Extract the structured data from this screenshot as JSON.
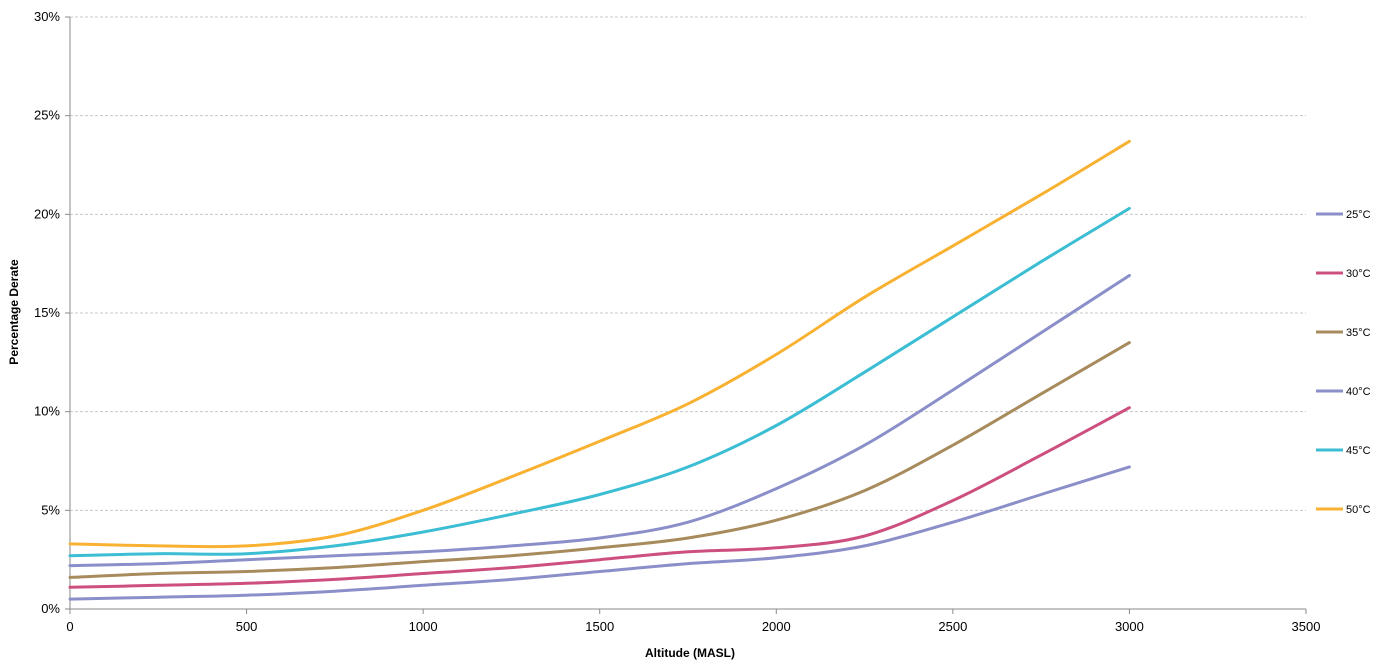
{
  "chart_data": {
    "type": "line",
    "title": "",
    "xlabel": "Altitude (MASL)",
    "ylabel": "Percentage Derate",
    "xlim": [
      0,
      3500
    ],
    "ylim": [
      0,
      30
    ],
    "x_ticks": [
      "0",
      "500",
      "1000",
      "1500",
      "2000",
      "2500",
      "3000",
      "3500"
    ],
    "y_ticks": [
      "0%",
      "5%",
      "10%",
      "15%",
      "20%",
      "25%",
      "30%"
    ],
    "grid": true,
    "legend_position": "right",
    "x": [
      0,
      250,
      500,
      750,
      1000,
      1250,
      1500,
      1750,
      2000,
      2250,
      2500,
      2750,
      3000
    ],
    "series": [
      {
        "name": "25°C",
        "color": "#8a8fc9",
        "values": [
          0.5,
          0.6,
          0.7,
          0.9,
          1.2,
          1.5,
          1.9,
          2.3,
          2.6,
          3.2,
          4.4,
          5.8,
          7.2
        ]
      },
      {
        "name": "30°C",
        "color": "#cc4f7f",
        "values": [
          1.1,
          1.2,
          1.3,
          1.5,
          1.8,
          2.1,
          2.5,
          2.9,
          3.1,
          3.7,
          5.5,
          7.8,
          10.2
        ]
      },
      {
        "name": "35°C",
        "color": "#a88b5c",
        "values": [
          1.6,
          1.8,
          1.9,
          2.1,
          2.4,
          2.7,
          3.1,
          3.6,
          4.5,
          6.0,
          8.3,
          10.9,
          13.5
        ]
      },
      {
        "name": "40°C",
        "color": "#8a8fc9",
        "values": [
          2.2,
          2.3,
          2.5,
          2.7,
          2.9,
          3.2,
          3.6,
          4.4,
          6.1,
          8.3,
          11.1,
          14.0,
          16.9
        ]
      },
      {
        "name": "45°C",
        "color": "#3bbdd3",
        "values": [
          2.7,
          2.8,
          2.8,
          3.2,
          3.9,
          4.8,
          5.8,
          7.2,
          9.3,
          12.0,
          14.8,
          17.6,
          20.3
        ]
      },
      {
        "name": "50°C",
        "color": "#f8b131",
        "values": [
          3.3,
          3.2,
          3.2,
          3.7,
          5.0,
          6.7,
          8.5,
          10.4,
          12.9,
          15.8,
          18.4,
          21.0,
          23.7
        ]
      }
    ]
  }
}
